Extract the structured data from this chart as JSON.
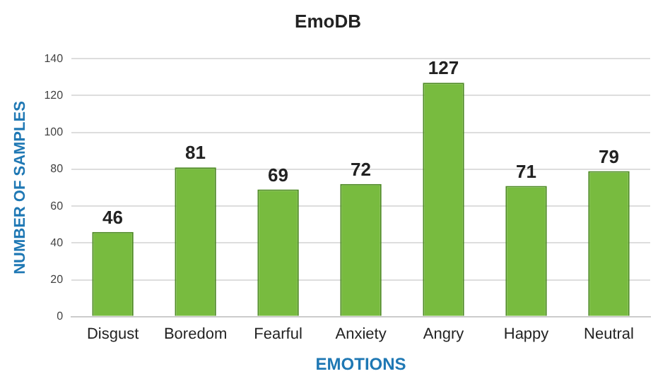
{
  "chart_data": {
    "type": "bar",
    "title": "EmoDB",
    "xlabel": "EMOTIONS",
    "ylabel": "NUMBER OF SAMPLES",
    "categories": [
      "Disgust",
      "Boredom",
      "Fearful",
      "Anxiety",
      "Angry",
      "Happy",
      "Neutral"
    ],
    "values": [
      46,
      81,
      69,
      72,
      127,
      71,
      79
    ],
    "color": "#78bb3f",
    "ylim": [
      0,
      140
    ],
    "yticks": [
      0,
      20,
      40,
      60,
      80,
      100,
      120,
      140
    ],
    "grid": "y",
    "data_labels": true
  }
}
